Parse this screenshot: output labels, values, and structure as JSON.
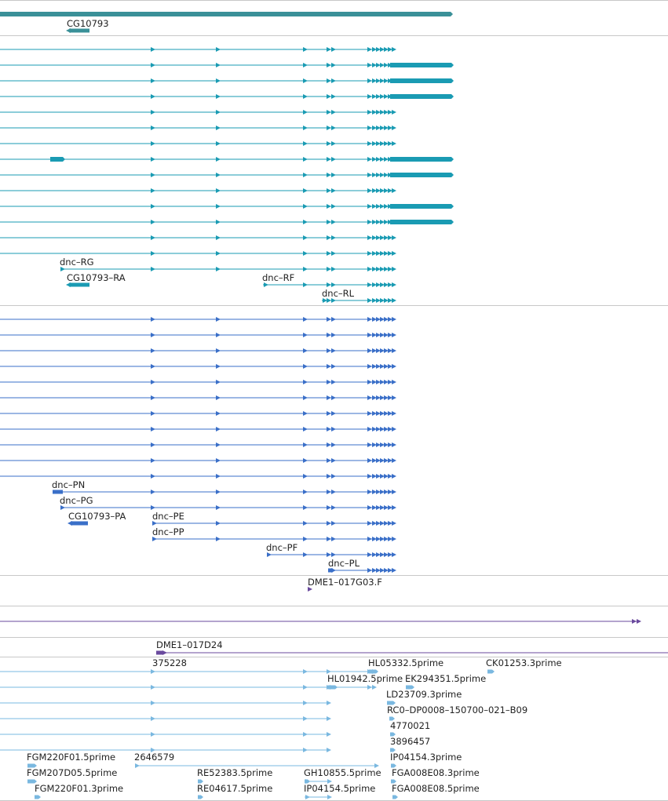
{
  "colors": {
    "gene_span": "#3a9098",
    "transcript_teal": "#1a9bb3",
    "protein_blue": "#3a6fc8",
    "clone_purple": "#6a4a9e",
    "est_light": "#7ab8e0",
    "separator": "#c8c8c8"
  },
  "gene_track": {
    "label": "CG10793"
  },
  "transcript_track": {
    "labels": {
      "dnc_rg": "dnc–RG",
      "cg_ra": "CG10793–RA",
      "dnc_rf": "dnc–RF",
      "dnc_rl": "dnc–RL"
    }
  },
  "protein_track": {
    "labels": {
      "dnc_pn": "dnc–PN",
      "dnc_pg": "dnc–PG",
      "cg_pa": "CG10793–PA",
      "dnc_pe": "dnc–PE",
      "dnc_pp": "dnc–PP",
      "dnc_pf": "dnc–PF",
      "dnc_pl": "dnc–PL"
    }
  },
  "clone_track": {
    "labels": {
      "dme1_017g03": "DME1–017G03.F",
      "dme1_017d24": "DME1–017D24"
    }
  },
  "est_track": {
    "labels": {
      "n375228": "375228",
      "hl05332": "HL05332.5prime",
      "ck01253": "CK01253.3prime",
      "hl01942": "HL01942.5prime",
      "ek294351": "EK294351.5prime",
      "ld23709": "LD23709.3prime",
      "rc0": "RC0–DP0008–150700–021–B09",
      "n4770021": "4770021",
      "n3896457": "3896457",
      "fgm220f01_5": "FGM220F01.5prime",
      "n2646579": "2646579",
      "ip04154_3": "IP04154.3prime",
      "fgm207d05": "FGM207D05.5prime",
      "re52383": "RE52383.5prime",
      "gh10855": "GH10855.5prime",
      "fga008e08_3": "FGA008E08.3prime",
      "fgm220f01_3": "FGM220F01.3prime",
      "re04617": "RE04617.5prime",
      "ip04154_5": "IP04154.5prime",
      "fga008e08_5": "FGA008E08.5prime"
    }
  }
}
